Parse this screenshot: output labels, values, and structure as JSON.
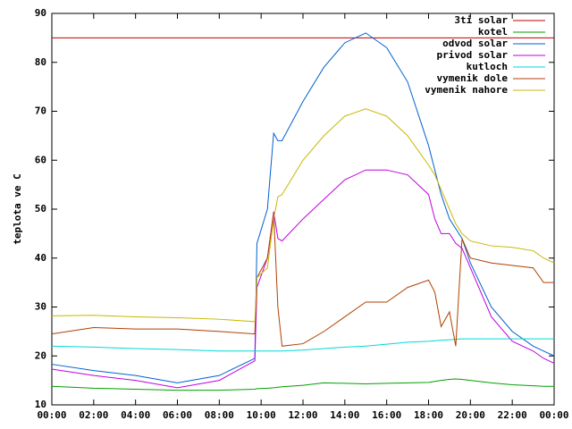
{
  "chart_data": {
    "type": "line",
    "y_label": "teplota ve C",
    "x": [
      0,
      2,
      4,
      6,
      8,
      9.7,
      9.8,
      10.3,
      10.6,
      10.8,
      11,
      12,
      13,
      14,
      15,
      16,
      17,
      18,
      18.3,
      18.6,
      19,
      19.3,
      19.6,
      20,
      21,
      22,
      23,
      23.5,
      24
    ],
    "xlim": [
      0,
      24
    ],
    "xticks": [
      {
        "value": 0,
        "label": "00:00"
      },
      {
        "value": 2,
        "label": "02:00"
      },
      {
        "value": 4,
        "label": "04:00"
      },
      {
        "value": 6,
        "label": "06:00"
      },
      {
        "value": 8,
        "label": "08:00"
      },
      {
        "value": 10,
        "label": "10:00"
      },
      {
        "value": 12,
        "label": "12:00"
      },
      {
        "value": 14,
        "label": "14:00"
      },
      {
        "value": 16,
        "label": "16:00"
      },
      {
        "value": 18,
        "label": "18:00"
      },
      {
        "value": 20,
        "label": "20:00"
      },
      {
        "value": 22,
        "label": "22:00"
      },
      {
        "value": 24,
        "label": "00:00"
      }
    ],
    "ylim": [
      10,
      90
    ],
    "yticks": [
      10,
      20,
      30,
      40,
      50,
      60,
      70,
      80,
      90
    ],
    "grid": false,
    "legend": "top-right",
    "series": [
      {
        "name": "3ti solar",
        "color": "#c00000",
        "values": [
          85,
          85,
          85,
          85,
          85,
          85,
          85,
          85,
          85,
          85,
          85,
          85,
          85,
          85,
          85,
          85,
          85,
          85,
          85,
          85,
          85,
          85,
          85,
          85,
          85,
          85,
          85,
          85,
          85
        ]
      },
      {
        "name": "kotel",
        "color": "#00a000",
        "values": [
          13.8,
          13.4,
          13.2,
          13,
          13,
          13.2,
          13.3,
          13.4,
          13.5,
          13.6,
          13.7,
          14,
          14.5,
          14.4,
          14.3,
          14.4,
          14.5,
          14.6,
          14.8,
          15,
          15.2,
          15.3,
          15.2,
          15,
          14.5,
          14.1,
          13.9,
          13.8,
          13.8
        ]
      },
      {
        "name": "odvod solar",
        "color": "#0060d0",
        "values": [
          18.3,
          17,
          16,
          14.5,
          16,
          19.5,
          43,
          50,
          65.5,
          64,
          64,
          72,
          79,
          84,
          86,
          83,
          76,
          63,
          58,
          53,
          48,
          46,
          44,
          39,
          30,
          25,
          22,
          21,
          20
        ]
      },
      {
        "name": "privod solar",
        "color": "#c000e0",
        "values": [
          17.3,
          16,
          15,
          13.5,
          15,
          19,
          34,
          40,
          49.5,
          44,
          43.5,
          48,
          52,
          56,
          58,
          58,
          57,
          53,
          48,
          45,
          45,
          43,
          42,
          38,
          28,
          23,
          21,
          19.5,
          18.5
        ]
      },
      {
        "name": "kutloch",
        "color": "#00d8d8",
        "values": [
          22,
          21.8,
          21.5,
          21.3,
          21,
          21,
          21,
          21,
          21,
          21,
          21,
          21.2,
          21.5,
          21.8,
          22,
          22.4,
          22.8,
          23,
          23.1,
          23.2,
          23.3,
          23.4,
          23.5,
          23.5,
          23.5,
          23.5,
          23.5,
          23.5,
          23.5
        ]
      },
      {
        "name": "vymenik dole",
        "color": "#b04000",
        "values": [
          24.5,
          25.8,
          25.5,
          25.5,
          25,
          24.5,
          36,
          40,
          49,
          30,
          22,
          22.5,
          25,
          28,
          31,
          31,
          34,
          35.5,
          33,
          26,
          29,
          22,
          44,
          40,
          39,
          38.5,
          38,
          35,
          35
        ]
      },
      {
        "name": "vymenik nahore",
        "color": "#c8b800",
        "values": [
          28.2,
          28.3,
          28,
          27.8,
          27.5,
          27,
          36,
          38,
          48,
          52.5,
          53,
          60,
          65,
          69,
          70.5,
          69,
          65,
          59,
          57,
          54,
          50,
          47,
          45,
          43.5,
          42.5,
          42.2,
          41.5,
          40,
          39
        ]
      }
    ]
  }
}
